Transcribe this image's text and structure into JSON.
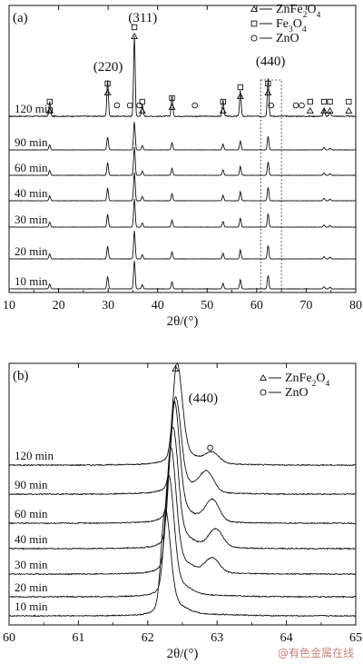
{
  "watermark": "@有色金属在线",
  "chart_data": [
    {
      "type": "line",
      "panel_label": "(a)",
      "xlabel": "2θ/(°)",
      "xlim": [
        10,
        80
      ],
      "xticks": [
        10,
        20,
        30,
        40,
        50,
        60,
        70,
        80
      ],
      "series_labels": [
        "120 min",
        "90 min",
        "60 min",
        "40 min",
        "30 min",
        "20 min",
        "10 min"
      ],
      "legend": [
        {
          "marker": "triangle",
          "label": "ZnFe2O4"
        },
        {
          "marker": "square",
          "label": "Fe3O4"
        },
        {
          "marker": "circle",
          "label": "ZnO"
        }
      ],
      "legend_position": "top-right",
      "peaks": [
        {
          "x": 18.2,
          "h": 0.18
        },
        {
          "x": 29.9,
          "h": 0.45
        },
        {
          "x": 35.3,
          "h": 1.0
        },
        {
          "x": 36.9,
          "h": 0.15
        },
        {
          "x": 42.9,
          "h": 0.25
        },
        {
          "x": 53.2,
          "h": 0.2
        },
        {
          "x": 56.7,
          "h": 0.32
        },
        {
          "x": 62.3,
          "h": 0.48
        },
        {
          "x": 73.6,
          "h": 0.08
        },
        {
          "x": 74.8,
          "h": 0.06
        }
      ],
      "peak_labels": [
        {
          "text": "(220)",
          "x": 30.0
        },
        {
          "text": "(311)",
          "x": 37.0
        },
        {
          "text": "(440)",
          "x": 62.8
        }
      ],
      "markers": [
        {
          "x": 18.2,
          "symbols": [
            "square",
            "triangle"
          ]
        },
        {
          "x": 29.9,
          "symbols": [
            "square",
            "triangle"
          ]
        },
        {
          "x": 31.8,
          "symbols": [
            "circle"
          ]
        },
        {
          "x": 34.4,
          "symbols": [
            "circle"
          ]
        },
        {
          "x": 35.3,
          "symbols": [
            "square",
            "triangle"
          ]
        },
        {
          "x": 36.3,
          "symbols": [
            "circle"
          ]
        },
        {
          "x": 36.9,
          "symbols": [
            "square",
            "triangle"
          ]
        },
        {
          "x": 42.9,
          "symbols": [
            "square",
            "triangle"
          ]
        },
        {
          "x": 47.5,
          "symbols": [
            "circle"
          ]
        },
        {
          "x": 53.2,
          "symbols": [
            "square",
            "triangle"
          ]
        },
        {
          "x": 56.7,
          "symbols": [
            "square",
            "triangle"
          ]
        },
        {
          "x": 62.3,
          "symbols": [
            "square",
            "triangle"
          ]
        },
        {
          "x": 62.9,
          "symbols": [
            "circle"
          ]
        },
        {
          "x": 67.9,
          "symbols": [
            "circle"
          ]
        },
        {
          "x": 69.1,
          "symbols": [
            "circle"
          ]
        },
        {
          "x": 70.8,
          "symbols": [
            "square",
            "triangle"
          ]
        },
        {
          "x": 73.6,
          "symbols": [
            "square",
            "triangle"
          ]
        },
        {
          "x": 74.8,
          "symbols": [
            "square",
            "triangle"
          ]
        },
        {
          "x": 78.6,
          "symbols": [
            "square",
            "triangle"
          ]
        }
      ],
      "highlight_range": [
        60.8,
        65.0
      ]
    },
    {
      "type": "line",
      "panel_label": "(b)",
      "xlabel": "2θ/(°)",
      "xlim": [
        60,
        65
      ],
      "xticks": [
        60,
        61,
        62,
        63,
        64,
        65
      ],
      "series_labels": [
        "120 min",
        "90 min",
        "60 min",
        "40 min",
        "30 min",
        "20 min",
        "10 min"
      ],
      "legend": [
        {
          "marker": "triangle",
          "label": "ZnFe2O4"
        },
        {
          "marker": "circle",
          "label": "ZnO"
        }
      ],
      "legend_position": "top-right",
      "peak_label": {
        "text": "(440)",
        "x": 62.8
      },
      "main_peak_x": [
        62.42,
        62.4,
        62.38,
        62.36,
        62.33,
        62.3,
        62.25
      ],
      "zno_peak": {
        "x": [
          62.93,
          62.85,
          62.93,
          62.98,
          62.93
        ],
        "series_count": 5
      },
      "markers": [
        {
          "x": 62.4,
          "symbol": "triangle"
        },
        {
          "x": 62.9,
          "symbol": "circle"
        }
      ]
    }
  ]
}
